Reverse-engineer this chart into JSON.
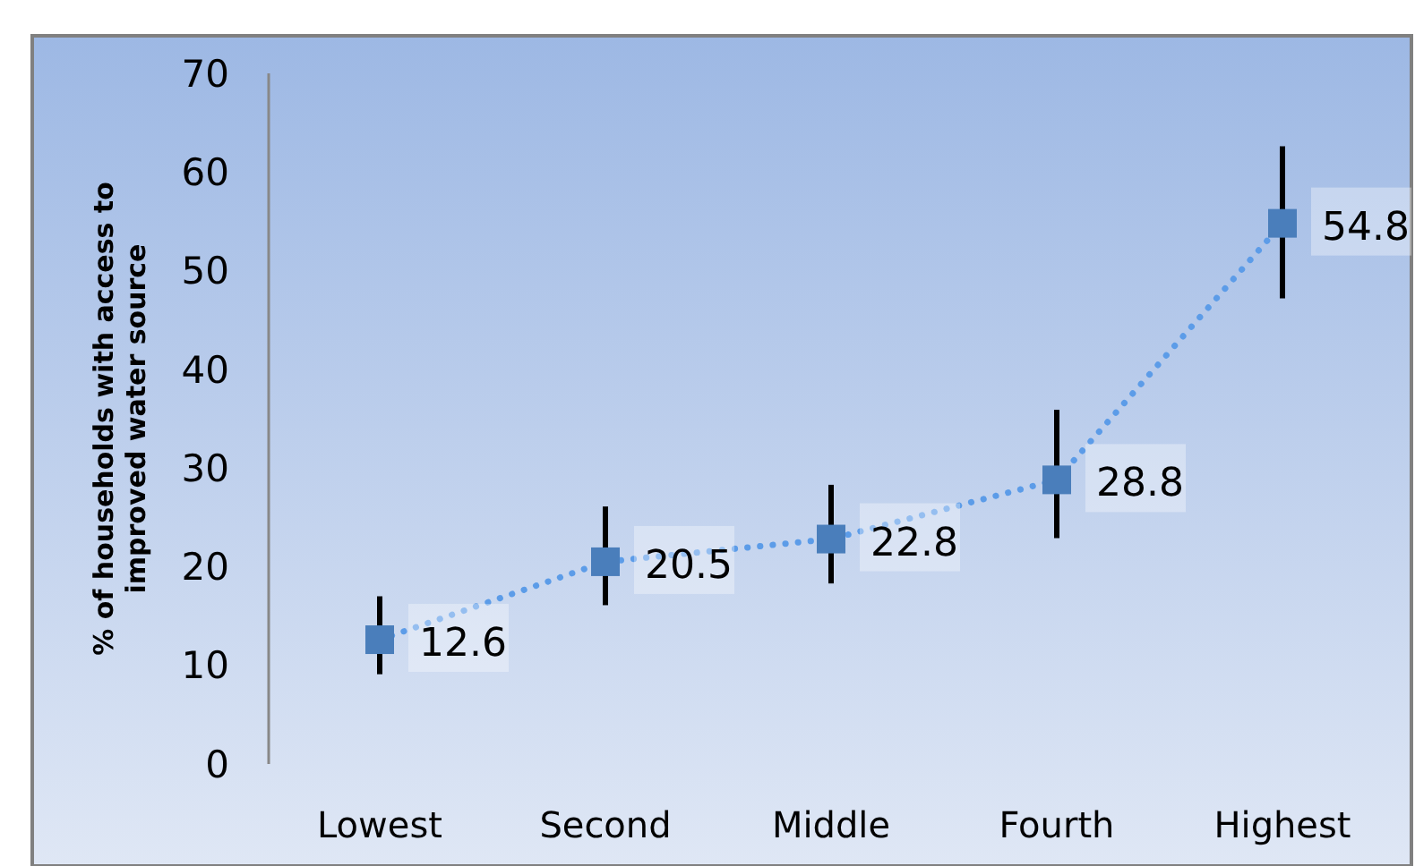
{
  "chart_data": {
    "type": "line",
    "ylabel": "% of households with access to improved water source",
    "categories": [
      "Lowest",
      "Second",
      "Middle",
      "Fourth",
      "Highest"
    ],
    "series": [
      {
        "color": "#4a7ebb",
        "values": [
          12.6,
          20.5,
          22.8,
          28.8,
          54.8
        ],
        "errors": [
          [
            9.1,
            17.0
          ],
          [
            16.1,
            26.1
          ],
          [
            18.3,
            28.3
          ],
          [
            22.9,
            35.9
          ],
          [
            47.2,
            62.6
          ]
        ]
      }
    ],
    "ylim": [
      0,
      70
    ],
    "yticks": [
      0,
      10,
      20,
      30,
      40,
      50,
      60,
      70
    ],
    "grid": false,
    "marker": "square",
    "line_style": "dotted",
    "data_labels": true
  }
}
